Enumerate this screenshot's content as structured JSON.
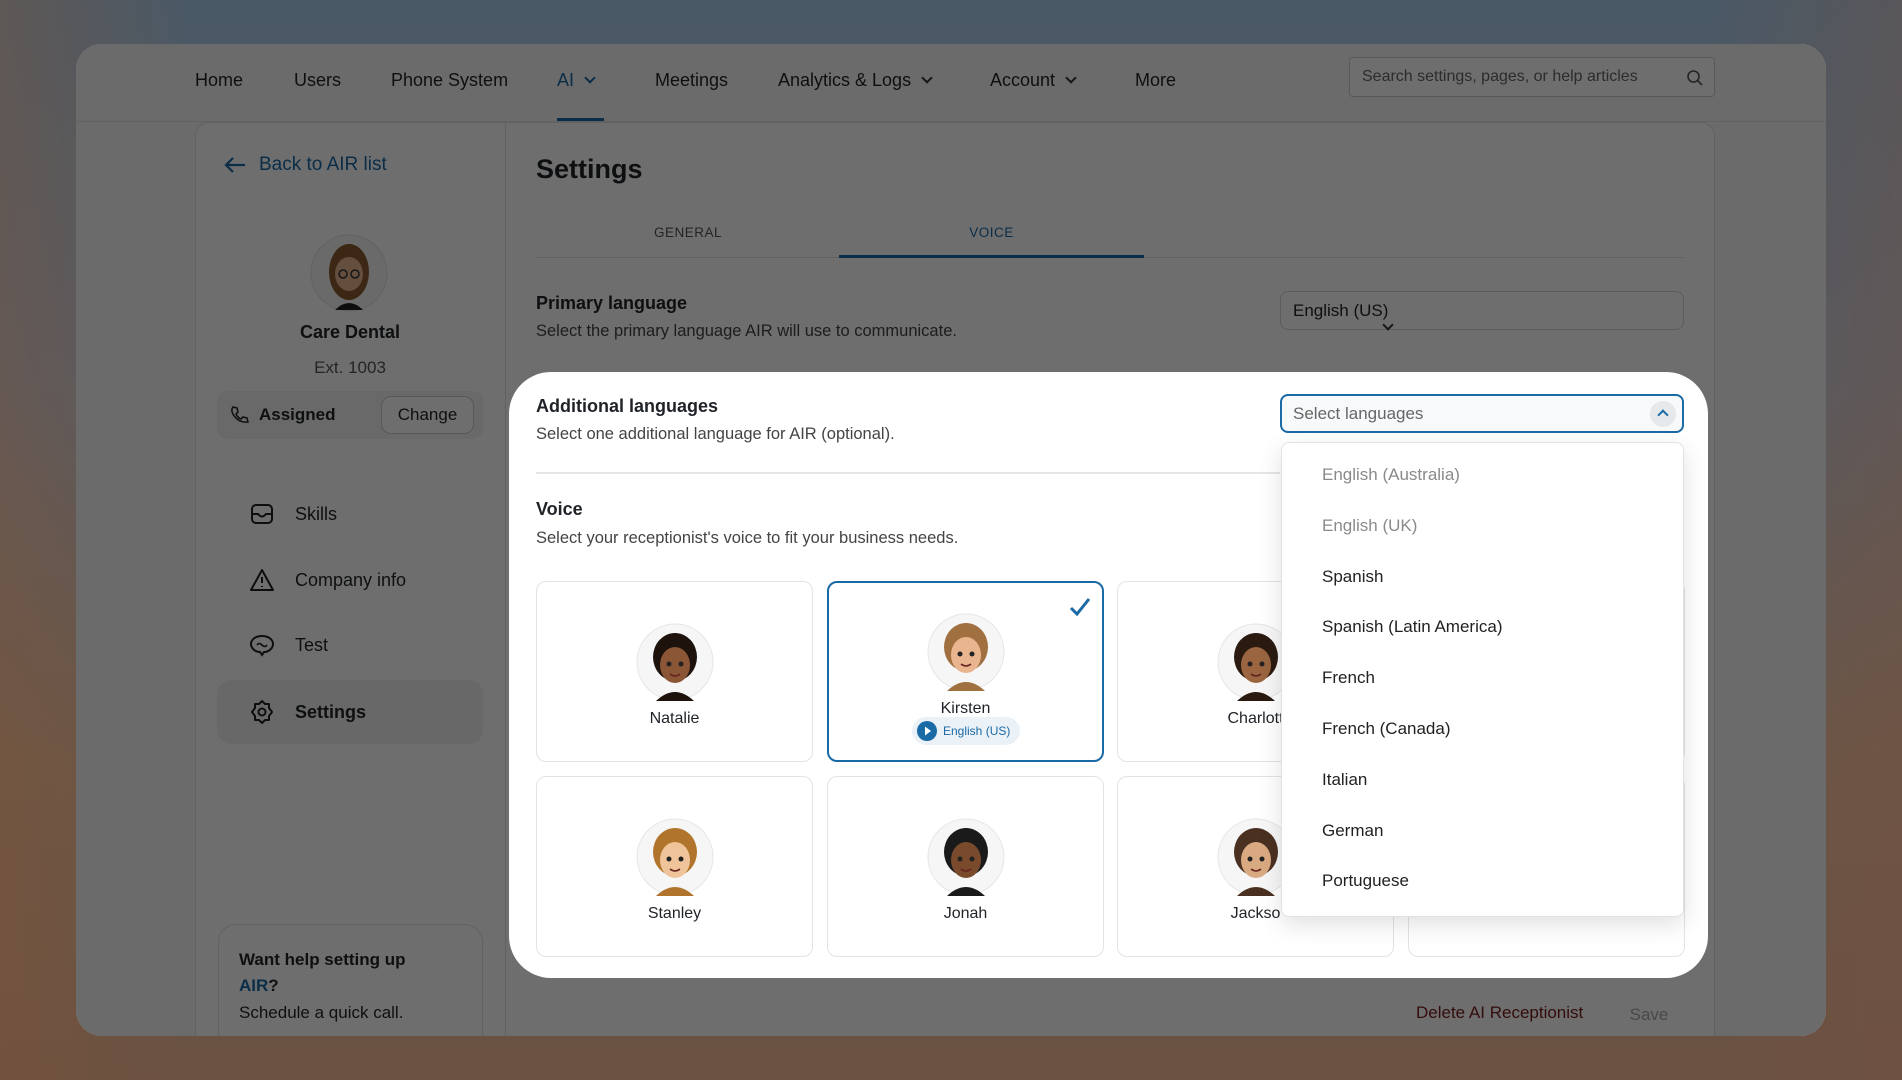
{
  "nav": {
    "items": [
      "Home",
      "Users",
      "Phone System",
      "AI",
      "Meetings",
      "Analytics & Logs",
      "Account",
      "More"
    ],
    "active": "AI",
    "search_placeholder": "Search settings, pages, or help articles"
  },
  "sidebar": {
    "back": "Back to AIR list",
    "name": "Care Dental",
    "ext": "Ext. 1003",
    "assigned": "Assigned",
    "change": "Change",
    "items": [
      {
        "label": "Skills",
        "icon": "inbox-icon"
      },
      {
        "label": "Company info",
        "icon": "warning-icon"
      },
      {
        "label": "Test",
        "icon": "chat-icon"
      },
      {
        "label": "Settings",
        "icon": "gear-icon"
      }
    ],
    "help": {
      "line1": "Want help setting up",
      "air": "AIR",
      "q": "?",
      "line2": "Schedule a quick call."
    }
  },
  "main": {
    "title": "Settings",
    "tabs": [
      "GENERAL",
      "VOICE"
    ],
    "active_tab": "VOICE",
    "primary": {
      "label": "Primary language",
      "desc": "Select the primary language AIR will use to communicate.",
      "value": "English (US)"
    },
    "additional": {
      "label": "Additional languages",
      "desc": "Select one additional language for AIR (optional).",
      "placeholder": "Select languages",
      "options": [
        "English (Australia)",
        "English (UK)",
        "Spanish",
        "Spanish (Latin America)",
        "French",
        "French (Canada)",
        "Italian",
        "German",
        "Portuguese"
      ],
      "disabled_options": [
        "English (Australia)",
        "English (UK)"
      ]
    },
    "voice": {
      "label": "Voice",
      "desc": "Select your receptionist's voice to fit your business needs.",
      "voices": [
        {
          "name": "Natalie"
        },
        {
          "name": "Kirsten",
          "selected": true,
          "badge": "English (US)"
        },
        {
          "name": "Charlott"
        },
        {
          "name": ""
        },
        {
          "name": "Stanley"
        },
        {
          "name": "Jonah"
        },
        {
          "name": "Jackso"
        },
        {
          "name": ""
        }
      ]
    },
    "delete": "Delete AI Receptionist",
    "save": "Save"
  },
  "colors": {
    "accent": "#1a6aa6",
    "danger": "#7a1a1a"
  }
}
